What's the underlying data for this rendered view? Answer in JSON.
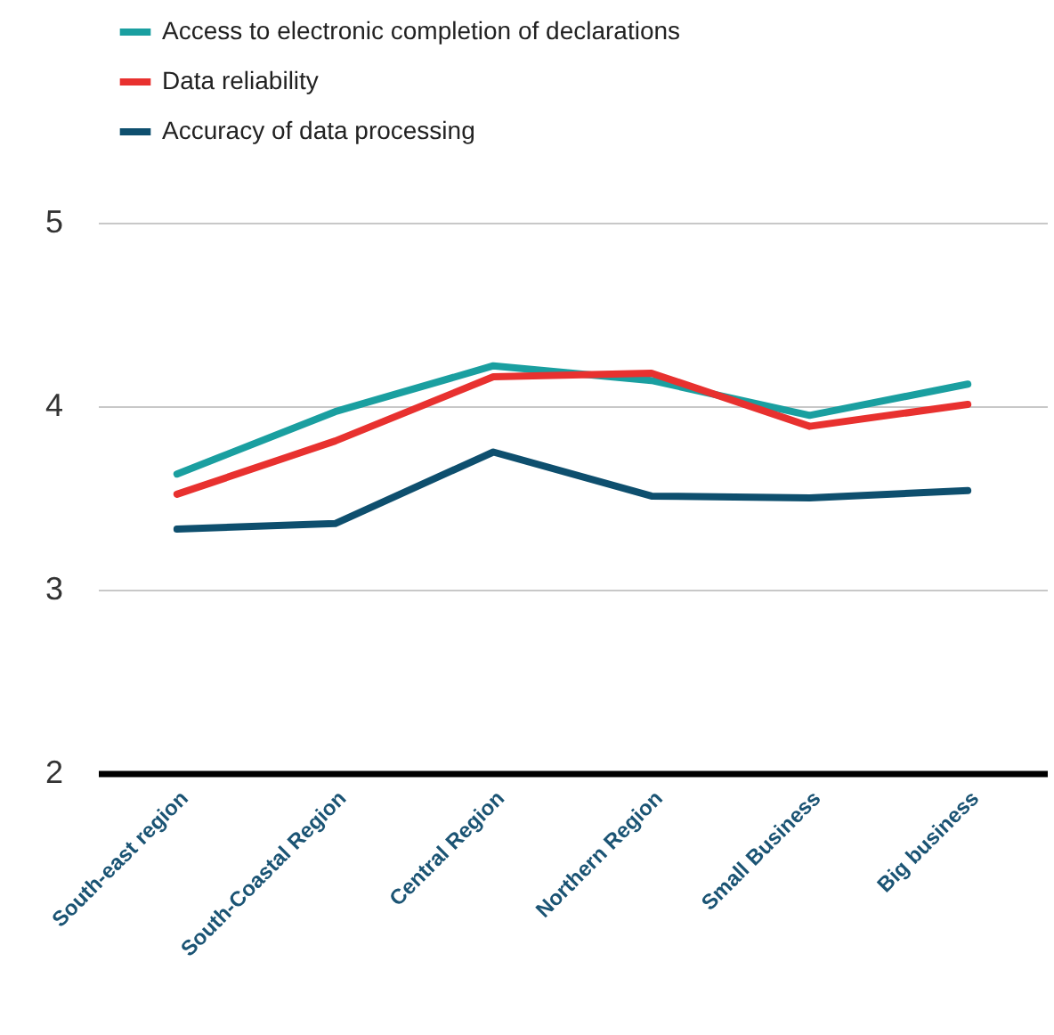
{
  "chart_data": {
    "type": "line",
    "categories": [
      "South-east region",
      "South-Coastal Region",
      "Central Region",
      "Northern Region",
      "Small Business",
      "Big business"
    ],
    "series": [
      {
        "name": "Access to electronic completion of declarations",
        "color": "#1a9fa0",
        "values": [
          3.63,
          3.97,
          4.22,
          4.14,
          3.95,
          4.12
        ]
      },
      {
        "name": "Data reliability",
        "color": "#e8312f",
        "values": [
          3.52,
          3.81,
          4.16,
          4.18,
          3.89,
          4.01
        ]
      },
      {
        "name": "Accuracy of data processing",
        "color": "#0e4f6e",
        "values": [
          3.33,
          3.36,
          3.75,
          3.51,
          3.5,
          3.54
        ]
      }
    ],
    "ylim": [
      2,
      5
    ],
    "yticks": [
      2,
      3,
      4,
      5
    ],
    "grid": "y",
    "legend": "top left",
    "marker": "none",
    "line_style": "solid"
  }
}
